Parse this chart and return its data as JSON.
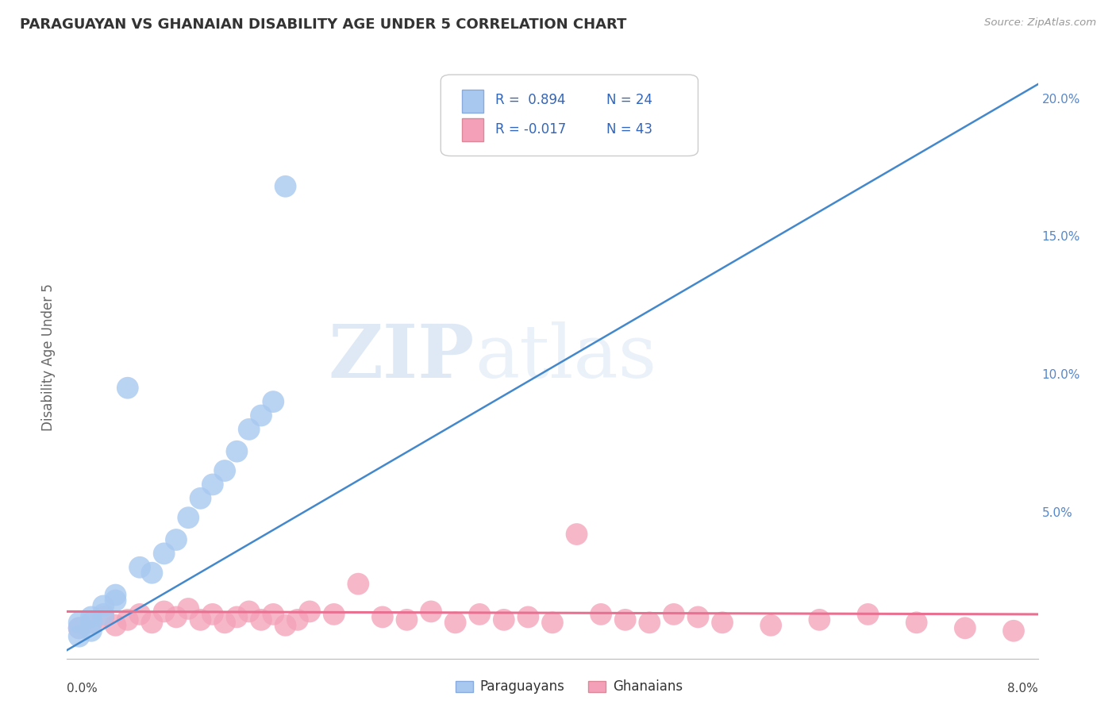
{
  "title": "PARAGUAYAN VS GHANAIAN DISABILITY AGE UNDER 5 CORRELATION CHART",
  "source": "Source: ZipAtlas.com",
  "ylabel": "Disability Age Under 5",
  "xlim": [
    0.0,
    0.08
  ],
  "ylim": [
    -0.003,
    0.215
  ],
  "right_yticks": [
    0.0,
    0.05,
    0.1,
    0.15,
    0.2
  ],
  "right_yticklabels": [
    "",
    "5.0%",
    "10.0%",
    "15.0%",
    "20.0%"
  ],
  "paraguayan_color": "#a8c8f0",
  "ghanaian_color": "#f4a0b8",
  "paraguayan_line_color": "#4488cc",
  "ghanaian_line_color": "#e87090",
  "background_color": "#ffffff",
  "grid_color": "#dddddd",
  "watermark_zip": "ZIP",
  "watermark_atlas": "atlas",
  "par_x": [
    0.001,
    0.001,
    0.002,
    0.002,
    0.002,
    0.003,
    0.003,
    0.004,
    0.004,
    0.005,
    0.006,
    0.007,
    0.008,
    0.009,
    0.01,
    0.011,
    0.012,
    0.013,
    0.014,
    0.015,
    0.016,
    0.017,
    0.001,
    0.018
  ],
  "par_y": [
    0.01,
    0.008,
    0.012,
    0.01,
    0.007,
    0.016,
    0.013,
    0.02,
    0.018,
    0.095,
    0.03,
    0.028,
    0.035,
    0.04,
    0.048,
    0.055,
    0.06,
    0.065,
    0.072,
    0.08,
    0.085,
    0.09,
    0.005,
    0.168
  ],
  "gha_x": [
    0.001,
    0.002,
    0.003,
    0.004,
    0.005,
    0.006,
    0.007,
    0.008,
    0.009,
    0.01,
    0.011,
    0.012,
    0.013,
    0.014,
    0.015,
    0.016,
    0.017,
    0.018,
    0.019,
    0.02,
    0.022,
    0.024,
    0.026,
    0.028,
    0.03,
    0.032,
    0.034,
    0.036,
    0.038,
    0.04,
    0.042,
    0.044,
    0.046,
    0.048,
    0.05,
    0.052,
    0.054,
    0.058,
    0.062,
    0.066,
    0.07,
    0.074,
    0.078
  ],
  "gha_y": [
    0.008,
    0.01,
    0.012,
    0.009,
    0.011,
    0.013,
    0.01,
    0.014,
    0.012,
    0.015,
    0.011,
    0.013,
    0.01,
    0.012,
    0.014,
    0.011,
    0.013,
    0.009,
    0.011,
    0.014,
    0.013,
    0.024,
    0.012,
    0.011,
    0.014,
    0.01,
    0.013,
    0.011,
    0.012,
    0.01,
    0.042,
    0.013,
    0.011,
    0.01,
    0.013,
    0.012,
    0.01,
    0.009,
    0.011,
    0.013,
    0.01,
    0.008,
    0.007
  ],
  "par_line_x": [
    0.0,
    0.08
  ],
  "par_line_y": [
    0.0,
    0.205
  ],
  "gha_line_x": [
    0.0,
    0.08
  ],
  "gha_line_y": [
    0.014,
    0.013
  ]
}
